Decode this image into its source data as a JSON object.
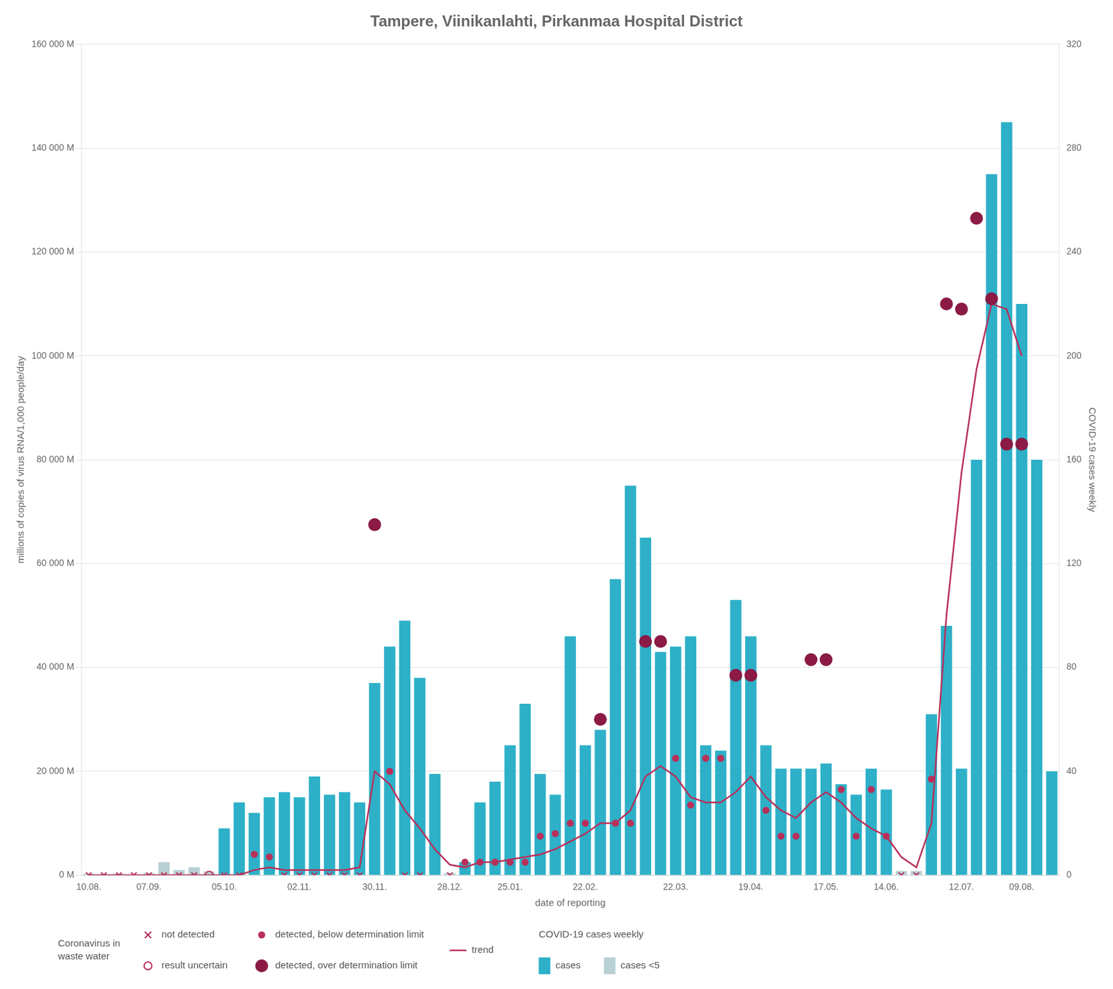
{
  "chart_data": {
    "type": "bar",
    "title": "Tampere, Viinikanlahti, Pirkanmaa Hospital District",
    "xlabel": "date of reporting",
    "ylabel": "millions of copies of virus RNA/1,000 people/day",
    "y2label": "COVID-19 cases weekly",
    "categories": [
      "10.08.",
      null,
      null,
      null,
      "07.09.",
      null,
      null,
      null,
      null,
      "05.10.",
      null,
      null,
      null,
      null,
      "02.11.",
      null,
      null,
      null,
      null,
      "30.11.",
      null,
      null,
      null,
      null,
      "28.12.",
      null,
      null,
      null,
      "25.01.",
      null,
      null,
      null,
      null,
      "22.02.",
      null,
      null,
      null,
      null,
      null,
      "22.03.",
      null,
      null,
      null,
      null,
      "19.04.",
      null,
      null,
      null,
      null,
      "17.05.",
      null,
      null,
      null,
      "14.06.",
      null,
      null,
      null,
      null,
      "12.07.",
      null,
      null,
      null,
      "09.08.",
      null,
      null
    ],
    "series": [
      {
        "name": "cases",
        "type": "bar",
        "color": "#2db0c8",
        "values": [
          null,
          null,
          null,
          null,
          null,
          null,
          null,
          null,
          null,
          9000,
          14000,
          12000,
          15000,
          16000,
          15000,
          19000,
          15500,
          16000,
          14000,
          37000,
          44000,
          49000,
          38000,
          19500,
          null,
          2500,
          14000,
          18000,
          25000,
          33000,
          19500,
          15500,
          46000,
          25000,
          28000,
          57000,
          75000,
          65000,
          43000,
          44000,
          46000,
          25000,
          24000,
          53000,
          46000,
          25000,
          20500,
          20500,
          20500,
          21500,
          17500,
          15500,
          20500,
          16500,
          null,
          null,
          31000,
          48000,
          20500,
          80000,
          135000,
          145000,
          110000,
          80000,
          20000
        ]
      },
      {
        "name": "cases <5",
        "type": "bar",
        "color": "#b8d0d4",
        "values": [
          300,
          200,
          300,
          150,
          400,
          2500,
          1000,
          1500,
          700,
          null,
          null,
          null,
          null,
          null,
          null,
          null,
          null,
          null,
          null,
          null,
          null,
          null,
          null,
          null,
          400,
          null,
          null,
          null,
          null,
          null,
          null,
          null,
          null,
          null,
          null,
          null,
          null,
          null,
          null,
          null,
          null,
          null,
          null,
          null,
          null,
          null,
          null,
          null,
          null,
          null,
          null,
          null,
          null,
          null,
          800,
          800,
          null,
          null,
          null,
          null,
          null,
          null,
          null,
          null,
          null
        ]
      },
      {
        "name": "not detected",
        "type": "scatter",
        "axis": "y2",
        "color": "#b8305a",
        "marker": "x",
        "values": [
          0,
          0,
          0,
          0,
          0,
          0,
          0,
          0,
          null,
          0,
          0,
          null,
          null,
          0,
          0,
          0,
          0,
          0,
          0,
          null,
          null,
          0,
          0,
          null,
          0,
          null,
          null,
          null,
          null,
          null,
          null,
          null,
          null,
          null,
          null,
          null,
          null,
          null,
          null,
          null,
          null,
          null,
          null,
          null,
          null,
          null,
          null,
          null,
          null,
          null,
          null,
          null,
          null,
          null,
          0,
          0,
          null,
          null,
          null,
          null,
          null,
          null,
          null,
          null,
          null
        ]
      },
      {
        "name": "result uncertain",
        "type": "scatter",
        "axis": "y2",
        "color": "#b8305a",
        "marker": "open_circle",
        "values": [
          null,
          null,
          null,
          null,
          null,
          null,
          null,
          null,
          0,
          null,
          null,
          null,
          null,
          null,
          null,
          null,
          null,
          null,
          null,
          null,
          null,
          null,
          null,
          null,
          null,
          null,
          null,
          null,
          null,
          null,
          null,
          null,
          null,
          null,
          null,
          null,
          null,
          null,
          null,
          null,
          null,
          null,
          null,
          null,
          null,
          null,
          null,
          null,
          null,
          null,
          null,
          null,
          null,
          null,
          null,
          null,
          null,
          null,
          null,
          null,
          null,
          null,
          null,
          null,
          null
        ]
      },
      {
        "name": "detected, below determination limit",
        "type": "scatter",
        "axis": "y2",
        "color": "#b8305a",
        "marker": "circle",
        "values": [
          null,
          null,
          null,
          null,
          null,
          null,
          null,
          null,
          null,
          null,
          null,
          8,
          7,
          null,
          null,
          null,
          null,
          null,
          null,
          null,
          40,
          null,
          null,
          null,
          null,
          5,
          5,
          5,
          5,
          5,
          15,
          16,
          20,
          20,
          null,
          20,
          20,
          null,
          null,
          45,
          27,
          45,
          45,
          null,
          null,
          25,
          15,
          15,
          null,
          null,
          33,
          15,
          33,
          15,
          null,
          null,
          37,
          null,
          null,
          null,
          null,
          null,
          null,
          null,
          null
        ]
      },
      {
        "name": "detected, over determination limit",
        "type": "scatter",
        "axis": "y2",
        "color": "#8b1a45",
        "marker": "big_circle",
        "values": [
          null,
          null,
          null,
          null,
          null,
          null,
          null,
          null,
          null,
          null,
          null,
          null,
          null,
          null,
          null,
          null,
          null,
          null,
          null,
          135,
          null,
          null,
          null,
          null,
          null,
          null,
          null,
          null,
          null,
          null,
          null,
          null,
          null,
          null,
          60,
          null,
          null,
          90,
          90,
          null,
          null,
          null,
          null,
          77,
          77,
          null,
          null,
          null,
          83,
          83,
          null,
          null,
          null,
          null,
          null,
          null,
          null,
          220,
          218,
          253,
          222,
          166,
          166,
          null,
          null
        ]
      },
      {
        "name": "trend",
        "type": "line",
        "axis": "y2",
        "color": "#b8305a",
        "line_style": "solid",
        "values": [
          0,
          0,
          0,
          0,
          0,
          0,
          0,
          0,
          0,
          0,
          0,
          2,
          3,
          2,
          2,
          2,
          2,
          2,
          3,
          40,
          35,
          25,
          18,
          10,
          4,
          3,
          5,
          5,
          6,
          7,
          8,
          10,
          13,
          16,
          20,
          20,
          25,
          38,
          42,
          38,
          30,
          28,
          28,
          32,
          38,
          30,
          25,
          22,
          28,
          32,
          28,
          22,
          18,
          15,
          7,
          3,
          20,
          100,
          155,
          195,
          220,
          218,
          200,
          null,
          null
        ]
      }
    ],
    "ylim": [
      0,
      160000
    ],
    "yticks": [
      {
        "value": 0,
        "label": "0 M"
      },
      {
        "value": 20000,
        "label": "20 000 M"
      },
      {
        "value": 40000,
        "label": "40 000 M"
      },
      {
        "value": 60000,
        "label": "60 000 M"
      },
      {
        "value": 80000,
        "label": "80 000 M"
      },
      {
        "value": 100000,
        "label": "100 000 M"
      },
      {
        "value": 120000,
        "label": "120 000 M"
      },
      {
        "value": 140000,
        "label": "140 000 M"
      },
      {
        "value": 160000,
        "label": "160 000 M"
      }
    ],
    "y2lim": [
      0,
      320
    ],
    "y2ticks": [
      0,
      40,
      80,
      120,
      160,
      200,
      240,
      280,
      320
    ],
    "grid": true,
    "legend": "bottom",
    "annotations": [
      "Coronavirus in\nwaste water",
      "COVID-19 cases weekly"
    ]
  }
}
